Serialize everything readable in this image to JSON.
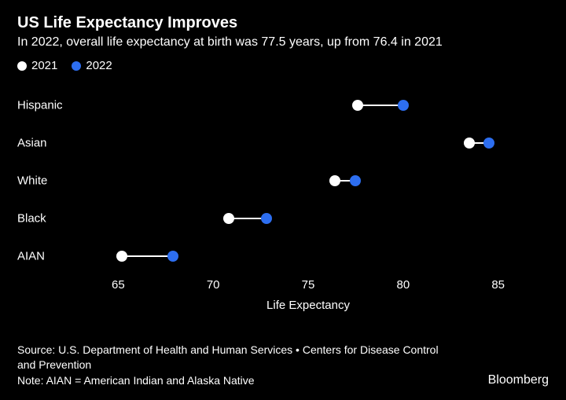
{
  "title": "US Life Expectancy Improves",
  "subtitle": "In 2022, overall life expectancy at birth was 77.5 years, up from 76.4 in 2021",
  "legend": [
    {
      "label": "2021",
      "color": "#ffffff"
    },
    {
      "label": "2022",
      "color": "#2d6ef0"
    }
  ],
  "chart": {
    "type": "dumbbell",
    "xlabel": "Life Expectancy",
    "xlim": [
      63,
      87
    ],
    "xticks": [
      65,
      70,
      75,
      80,
      85
    ],
    "categories": [
      "Hispanic",
      "Asian",
      "White",
      "Black",
      "AIAN"
    ],
    "series_2021_color": "#ffffff",
    "series_2022_color": "#2d6ef0",
    "connector_color": "#ffffff",
    "connector_width": 2,
    "dot_radius": 7,
    "background_color": "#000000",
    "text_color": "#ffffff",
    "label_fontsize": 15,
    "title_fontsize": 20,
    "data": [
      {
        "category": "Hispanic",
        "v2021": 77.6,
        "v2022": 80.0
      },
      {
        "category": "Asian",
        "v2021": 83.5,
        "v2022": 84.5
      },
      {
        "category": "White",
        "v2021": 76.4,
        "v2022": 77.5
      },
      {
        "category": "Black",
        "v2021": 70.8,
        "v2022": 72.8
      },
      {
        "category": "AIAN",
        "v2021": 65.2,
        "v2022": 67.9
      }
    ]
  },
  "source": "Source: U.S. Department of Health and Human Services • Centers for Disease Control and Prevention",
  "note": "Note: AIAN = American Indian and Alaska Native",
  "brand": "Bloomberg"
}
